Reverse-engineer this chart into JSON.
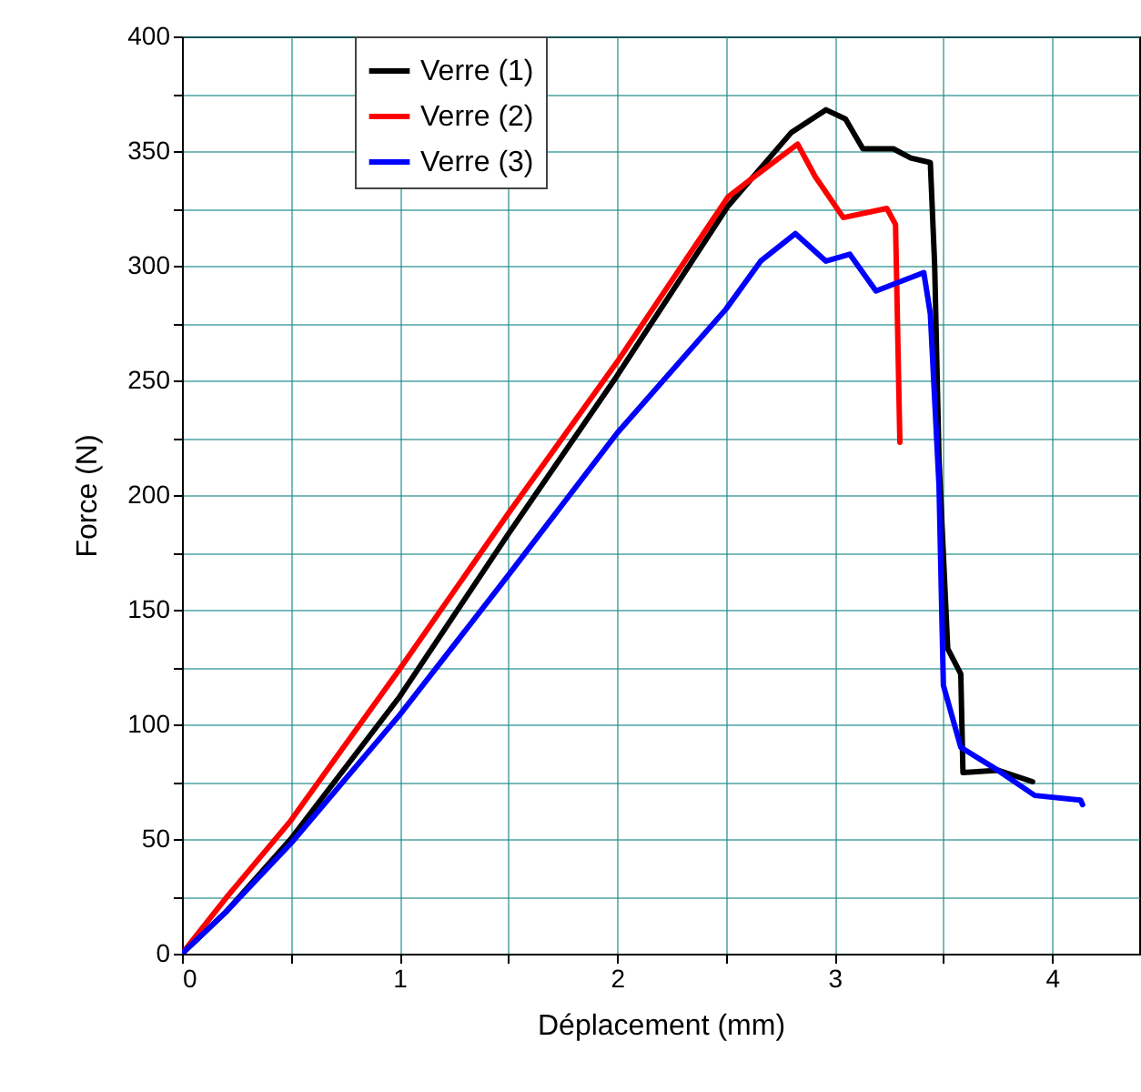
{
  "chart_data": {
    "type": "line",
    "xlabel": "Déplacement (mm)",
    "ylabel": "Force (N)",
    "xlim": [
      0,
      4.4
    ],
    "ylim": [
      0,
      400
    ],
    "xticks": [
      0,
      {
        "value": 0.5,
        "label": null
      },
      1,
      {
        "value": 1.5,
        "label": null
      },
      2,
      {
        "value": 2.5,
        "label": null
      },
      3,
      {
        "value": 3.5,
        "label": null
      },
      4
    ],
    "yticks": [
      0,
      {
        "value": 25,
        "label": null
      },
      50,
      {
        "value": 75,
        "label": null
      },
      100,
      {
        "value": 125,
        "label": null
      },
      150,
      {
        "value": 175,
        "label": null
      },
      200,
      {
        "value": 225,
        "label": null
      },
      250,
      {
        "value": 275,
        "label": null
      },
      300,
      {
        "value": 325,
        "label": null
      },
      350,
      {
        "value": 375,
        "label": null
      },
      400
    ],
    "grid": true,
    "legend": "top left",
    "line_style": "solid",
    "series": [
      {
        "name": "Verre (1)",
        "color": "#000000",
        "x": [
          0,
          0.2,
          0.5,
          1,
          1.5,
          2,
          2.51,
          2.8,
          2.96,
          3.05,
          3.13,
          3.27,
          3.35,
          3.44,
          3.46,
          3.48,
          3.52,
          3.58,
          3.59,
          3.75,
          3.91
        ],
        "values": [
          0,
          18,
          50,
          112,
          183,
          252,
          326,
          358,
          368,
          364,
          351,
          351,
          347,
          345,
          300,
          215,
          133,
          122,
          79,
          80,
          75
        ]
      },
      {
        "name": "Verre (2)",
        "color": "#ff0000",
        "x": [
          0,
          0.2,
          0.5,
          1,
          1.5,
          2,
          2.51,
          2.62,
          2.83,
          2.91,
          3.04,
          3.24,
          3.28,
          3.3
        ],
        "values": [
          0,
          24,
          58,
          124,
          192,
          258,
          330,
          338,
          353,
          339,
          321,
          325,
          318,
          223
        ]
      },
      {
        "name": "Verre (3)",
        "color": "#0000ff",
        "x": [
          0,
          0.2,
          0.5,
          1,
          1.5,
          2,
          2.5,
          2.66,
          2.82,
          2.96,
          3.07,
          3.19,
          3.41,
          3.44,
          3.48,
          3.49,
          3.5,
          3.58,
          3.75,
          3.92,
          4.13,
          4.14
        ],
        "values": [
          0,
          18,
          48,
          104,
          165,
          227,
          281,
          302,
          314,
          302,
          305,
          289,
          297,
          279,
          204,
          160,
          117,
          90,
          80,
          69,
          67,
          65
        ]
      }
    ]
  }
}
